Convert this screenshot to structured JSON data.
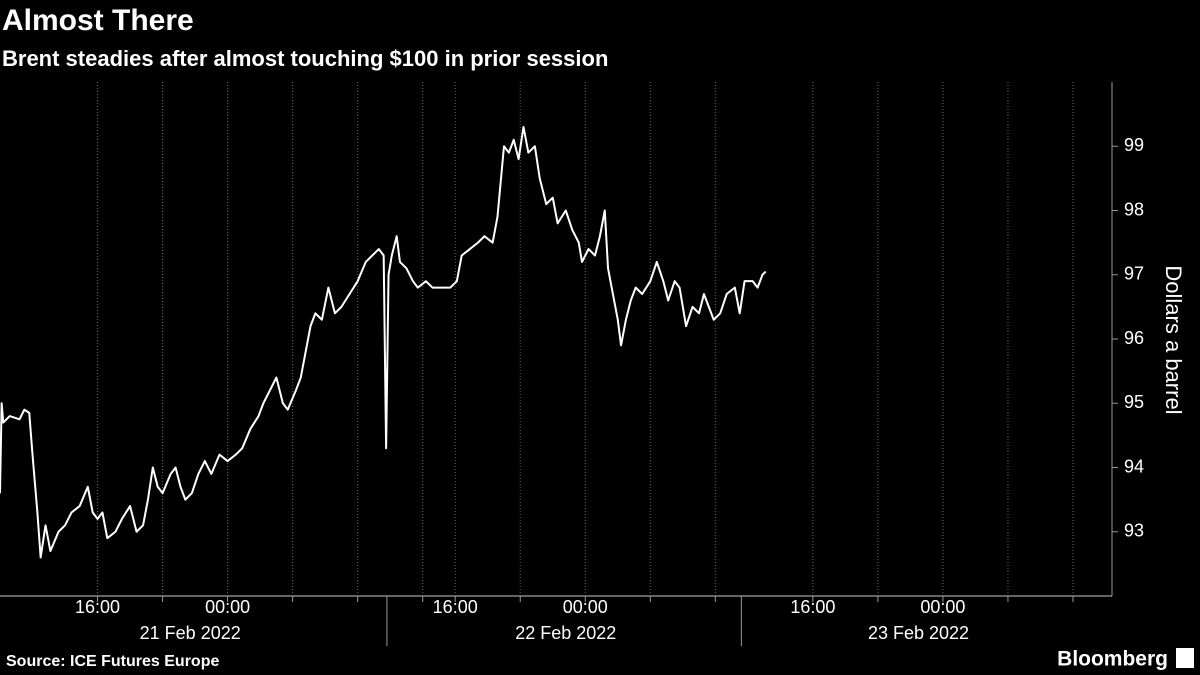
{
  "chart_data": {
    "type": "line",
    "title": "Almost There",
    "subtitle": "Brent steadies after almost touching $100 in prior session",
    "y_label": "Dollars a barrel",
    "source": "Source: ICE Futures Europe",
    "brand": "Bloomberg",
    "color": "#ffffff",
    "x": [
      0,
      0.1,
      0.2,
      0.6,
      1.2,
      1.5,
      1.8,
      2.0,
      2.3,
      2.5,
      2.8,
      3.1,
      3.6,
      4.0,
      4.4,
      4.9,
      5.4,
      5.7,
      6.0,
      6.3,
      6.6,
      7.1,
      7.5,
      8.0,
      8.4,
      8.8,
      9.1,
      9.4,
      9.7,
      10.0,
      10.5,
      10.8,
      11.1,
      11.4,
      11.8,
      12.2,
      12.6,
      13.0,
      13.5,
      14.0,
      14.5,
      14.9,
      15.4,
      15.9,
      16.2,
      16.6,
      17.0,
      17.4,
      17.7,
      18.2,
      18.5,
      18.8,
      19.1,
      19.4,
      19.8,
      20.2,
      20.6,
      21.0,
      21.5,
      22.0,
      22.5,
      22.9,
      23.3,
      23.6,
      23.75,
      23.9,
      24.1,
      24.4,
      24.6,
      25.0,
      25.4,
      25.7,
      26.2,
      26.6,
      27.1,
      27.7,
      28.1,
      28.4,
      28.9,
      29.4,
      29.8,
      30.3,
      30.6,
      31.0,
      31.3,
      31.6,
      31.9,
      32.2,
      32.5,
      32.9,
      33.2,
      33.6,
      34.0,
      34.3,
      34.8,
      35.2,
      35.6,
      35.8,
      36.2,
      36.6,
      36.9,
      37.2,
      37.4,
      37.7,
      38.0,
      38.2,
      38.5,
      38.8,
      39.1,
      39.5,
      40.0,
      40.4,
      40.8,
      41.1,
      41.5,
      41.8,
      42.2,
      42.6,
      43.0,
      43.3,
      43.6,
      43.9,
      44.3,
      44.7,
      45.2,
      45.5,
      45.8,
      46.3,
      46.6,
      46.9,
      47.1
    ],
    "values": [
      93.6,
      95.0,
      94.7,
      94.8,
      94.75,
      94.9,
      94.85,
      94.2,
      93.3,
      92.6,
      93.1,
      92.7,
      93.0,
      93.1,
      93.3,
      93.4,
      93.7,
      93.3,
      93.2,
      93.3,
      92.9,
      93.0,
      93.2,
      93.4,
      93.0,
      93.1,
      93.5,
      94.0,
      93.7,
      93.6,
      93.9,
      94.0,
      93.7,
      93.5,
      93.6,
      93.9,
      94.1,
      93.9,
      94.2,
      94.1,
      94.2,
      94.3,
      94.6,
      94.8,
      95.0,
      95.2,
      95.4,
      95.0,
      94.9,
      95.2,
      95.4,
      95.8,
      96.2,
      96.4,
      96.3,
      96.8,
      96.4,
      96.5,
      96.7,
      96.9,
      97.2,
      97.3,
      97.4,
      97.3,
      94.3,
      97.0,
      97.3,
      97.6,
      97.2,
      97.1,
      96.9,
      96.8,
      96.9,
      96.8,
      96.8,
      96.8,
      96.9,
      97.3,
      97.4,
      97.5,
      97.6,
      97.5,
      97.9,
      99.0,
      98.9,
      99.1,
      98.8,
      99.3,
      98.9,
      99.0,
      98.5,
      98.1,
      98.2,
      97.8,
      98.0,
      97.7,
      97.5,
      97.2,
      97.4,
      97.3,
      97.6,
      98.0,
      97.1,
      96.7,
      96.3,
      95.9,
      96.3,
      96.6,
      96.8,
      96.7,
      96.9,
      97.2,
      96.9,
      96.6,
      96.9,
      96.8,
      96.2,
      96.5,
      96.4,
      96.7,
      96.5,
      96.3,
      96.4,
      96.7,
      96.8,
      96.4,
      96.9,
      96.9,
      96.8,
      97.0,
      97.05
    ],
    "xlim": [
      0,
      68.4
    ],
    "xticks": [
      {
        "value": 6,
        "label": "16:00"
      },
      {
        "value": 14,
        "label": "00:00"
      },
      {
        "value": 28,
        "label": "16:00"
      },
      {
        "value": 36,
        "label": "00:00"
      },
      {
        "value": 50,
        "label": "16:00"
      },
      {
        "value": 58,
        "label": "00:00"
      }
    ],
    "xminor": [
      10,
      18,
      22,
      26,
      32,
      40,
      44,
      54,
      62,
      66
    ],
    "day_labels": [
      {
        "value": 11.7,
        "label": "21 Feb 2022"
      },
      {
        "value": 34.8,
        "label": "22 Feb 2022"
      },
      {
        "value": 56.5,
        "label": "23 Feb 2022"
      }
    ],
    "day_dividers": [
      23.8,
      45.6
    ],
    "ylim": [
      92,
      100
    ],
    "yticks": [
      93,
      94,
      95,
      96,
      97,
      98,
      99
    ],
    "grid": true
  }
}
